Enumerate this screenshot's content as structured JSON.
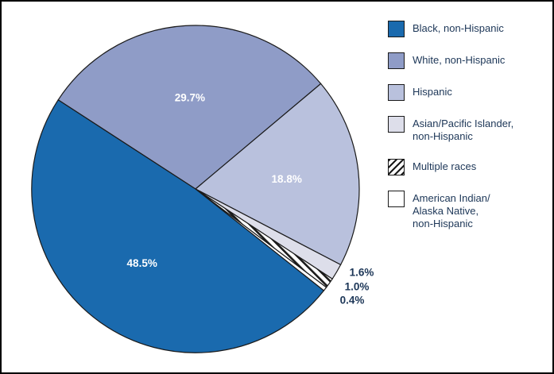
{
  "figure": {
    "title": "",
    "border_color": "#000000",
    "background": "#ffffff"
  },
  "chart_data": {
    "type": "pie",
    "title": "",
    "slices": [
      {
        "label": "Black, non-Hispanic",
        "value": 48.5,
        "pct_label": "48.5%",
        "color": "#1a6aae",
        "label_placement": "inside"
      },
      {
        "label": "White, non-Hispanic",
        "value": 29.7,
        "pct_label": "29.7%",
        "color": "#8f9cc7",
        "label_placement": "inside"
      },
      {
        "label": "Hispanic",
        "value": 18.8,
        "pct_label": "18.8%",
        "color": "#b9c1dd",
        "label_placement": "inside"
      },
      {
        "label": "Asian/Pacific Islander,\nnon-Hispanic",
        "value": 1.6,
        "pct_label": "1.6%",
        "color": "#dddeea",
        "label_placement": "outside"
      },
      {
        "label": "Multiple races",
        "value": 1.0,
        "pct_label": "1.0%",
        "color": "hatch",
        "label_placement": "outside"
      },
      {
        "label": "American Indian/\nAlaska Native,\nnon-Hispanic",
        "value": 0.4,
        "pct_label": "0.4%",
        "color": "#ffffff",
        "label_placement": "outside"
      }
    ],
    "draw_order": [
      1,
      2,
      3,
      4,
      5,
      0
    ],
    "start_angle_deg": 147,
    "direction": "clockwise",
    "legend_position": "top-right",
    "colors": {
      "inside_label": "#ffffff",
      "outside_label": "#1c3657",
      "slice_stroke": "#1a1a1a"
    }
  }
}
